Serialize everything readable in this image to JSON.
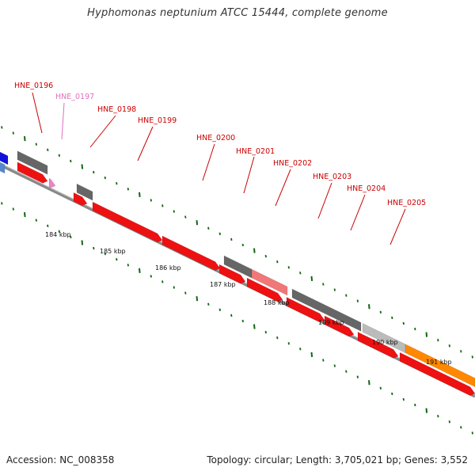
{
  "title": "Hyphomonas neptunium ATCC 15444, complete genome",
  "footer": {
    "accession": "Accession: NC_008358",
    "topology": "Topology: circular; Length: 3,705,021 bp; Genes: 3,552"
  },
  "colors": {
    "cds_forward": "#ee1111",
    "rna": "#f080c8",
    "pseudo": "#f07878",
    "other_gene": "#666666",
    "light_gene": "#bbbbbb",
    "highlight": "#ff8800",
    "blue": "#1111dd",
    "steel_blue": "#5588cc",
    "axis": "#888888",
    "tick": "#116611",
    "label_red": "#cc0000",
    "label_pink": "#e070c0"
  },
  "kbp_labels": [
    "184 kbp",
    "185 kbp",
    "186 kbp",
    "187 kbp",
    "188 kbp",
    "189 kbp",
    "190 kbp",
    "191 kbp"
  ],
  "genes": [
    {
      "name": "HNE_0196",
      "color": "label_red"
    },
    {
      "name": "HNE_0197",
      "color": "label_pink"
    },
    {
      "name": "HNE_0198",
      "color": "label_red"
    },
    {
      "name": "HNE_0199",
      "color": "label_red"
    },
    {
      "name": "HNE_0200",
      "color": "label_red"
    },
    {
      "name": "HNE_0201",
      "color": "label_red"
    },
    {
      "name": "HNE_0202",
      "color": "label_red"
    },
    {
      "name": "HNE_0203",
      "color": "label_red"
    },
    {
      "name": "HNE_0204",
      "color": "label_red"
    },
    {
      "name": "HNE_0205",
      "color": "label_red"
    }
  ]
}
